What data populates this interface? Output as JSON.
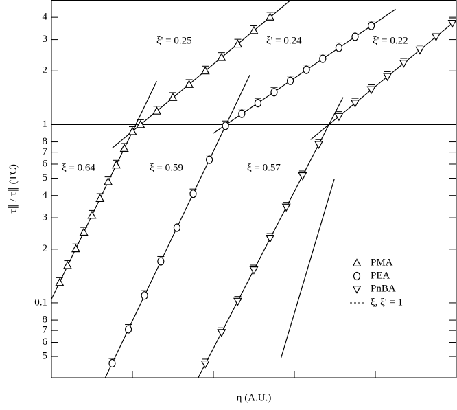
{
  "chart_data": {
    "type": "scatter",
    "x_label": "η (A.U.)",
    "y_label": "τ∥ / τ∥ (TC)",
    "log_x": true,
    "log_y": true,
    "xlim": [
      1,
      100000
    ],
    "ylim": [
      0.038,
      5
    ],
    "xticks": [
      1,
      10,
      100,
      1000,
      10000,
      100000
    ],
    "yticks": [
      {
        "value": 0.05,
        "label": "5"
      },
      {
        "value": 0.06,
        "label": "6"
      },
      {
        "value": 0.07,
        "label": "7"
      },
      {
        "value": 0.08,
        "label": "8"
      },
      0.1,
      {
        "value": 0.2,
        "label": "2"
      },
      {
        "value": 0.3,
        "label": "3"
      },
      {
        "value": 0.4,
        "label": "4"
      },
      {
        "value": 0.5,
        "label": "5"
      },
      {
        "value": 0.6,
        "label": "6"
      },
      {
        "value": 0.7,
        "label": "7"
      },
      {
        "value": 0.8,
        "label": "8"
      },
      1,
      2,
      3,
      4
    ],
    "hline": 1,
    "series": [
      {
        "name": "PMA",
        "marker": "triangle-up",
        "color": "#000000",
        "x": [
          1.26,
          1.58,
          2.0,
          2.51,
          3.16,
          3.98,
          5.01,
          6.31,
          7.94,
          10,
          12.6,
          20,
          31.6,
          50.1,
          79.4,
          126,
          200,
          316,
          501
        ],
        "values": [
          0.13,
          0.162,
          0.201,
          0.249,
          0.31,
          0.385,
          0.478,
          0.593,
          0.736,
          0.914,
          1.0,
          1.19,
          1.42,
          1.68,
          2.0,
          2.38,
          2.83,
          3.37,
          4.01
        ]
      },
      {
        "name": "PEA",
        "marker": "circle",
        "color": "#000000",
        "x": [
          5.62,
          8.91,
          14.1,
          22.4,
          35.5,
          56.2,
          89.1,
          141,
          224,
          355,
          562,
          891,
          1410,
          2240,
          3550,
          5620,
          8910
        ],
        "values": [
          0.0458,
          0.071,
          0.11,
          0.171,
          0.264,
          0.409,
          0.635,
          0.984,
          1.15,
          1.32,
          1.52,
          1.76,
          2.03,
          2.34,
          2.7,
          3.11,
          3.58
        ]
      },
      {
        "name": "PnBA",
        "marker": "triangle-down",
        "color": "#000000",
        "x": [
          79.4,
          126,
          200,
          316,
          501,
          794,
          1260,
          2000,
          3550,
          5620,
          8910,
          14100,
          22400,
          35500,
          56200,
          89100
        ],
        "values": [
          0.0454,
          0.0681,
          0.102,
          0.153,
          0.23,
          0.344,
          0.516,
          0.774,
          1.11,
          1.32,
          1.57,
          1.86,
          2.21,
          2.62,
          3.11,
          3.7
        ]
      }
    ],
    "reference_line": {
      "name": "ξ, ξ' = 1",
      "x": [
        682,
        3120
      ],
      "values": [
        0.0488,
        0.497
      ]
    },
    "annotations": [
      "ξ' = 0.25",
      "ξ' = 0.24",
      "ξ' = 0.22",
      "ξ = 0.64",
      "ξ = 0.59",
      "ξ = 0.57"
    ]
  }
}
